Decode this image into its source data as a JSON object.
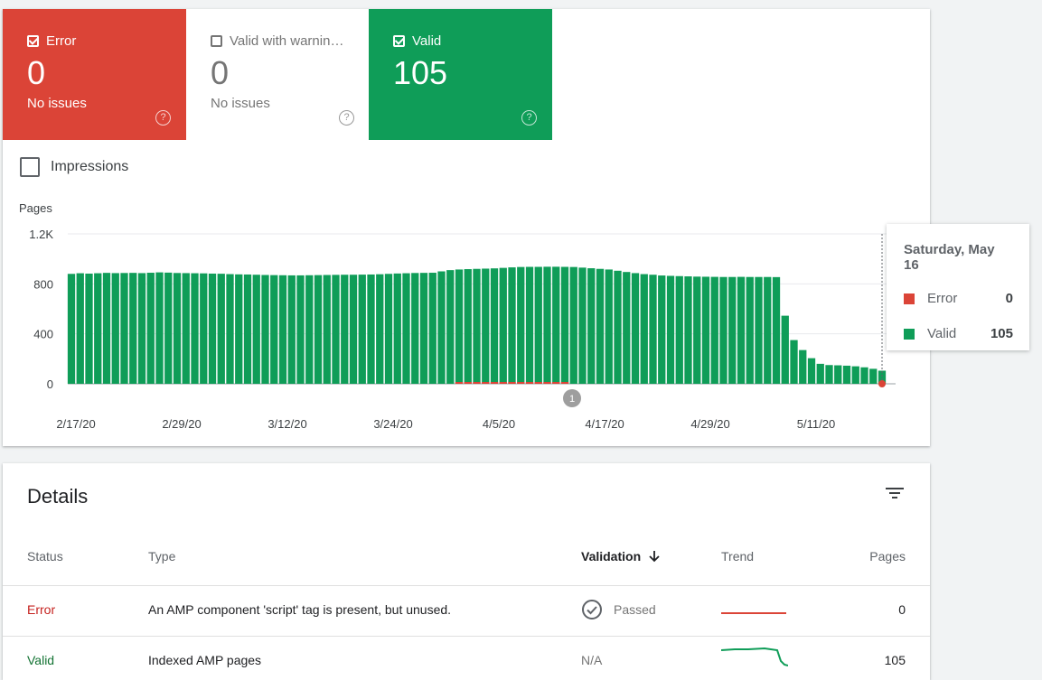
{
  "tiles": {
    "error": {
      "label": "Error",
      "count": "0",
      "sub": "No issues",
      "checked": true
    },
    "warning": {
      "label": "Valid with warnin…",
      "count": "0",
      "sub": "No issues",
      "checked": false
    },
    "valid": {
      "label": "Valid",
      "count": "105",
      "checked": true
    }
  },
  "impressions_label": "Impressions",
  "colors": {
    "error": "#db4437",
    "warning_bg": "#ffffff",
    "valid": "#0f9d58"
  },
  "chart_data": {
    "type": "bar",
    "ylabel": "Pages",
    "ylim": [
      0,
      1200
    ],
    "yticks": [
      "0",
      "400",
      "800",
      "1.2K"
    ],
    "ytick_values": [
      0,
      400,
      800,
      1200
    ],
    "xtick_labels": [
      "2/17/20",
      "2/29/20",
      "3/12/20",
      "3/24/20",
      "4/5/20",
      "4/17/20",
      "4/29/20",
      "5/11/20"
    ],
    "first_date": "2020-02-17",
    "last_date": "2020-05-16",
    "annotation": "1",
    "grid": true,
    "series": [
      {
        "name": "Valid",
        "color": "#0f9d58",
        "values": [
          880,
          885,
          882,
          885,
          888,
          886,
          887,
          888,
          886,
          889,
          892,
          890,
          887,
          886,
          885,
          884,
          882,
          881,
          878,
          876,
          875,
          873,
          871,
          870,
          869,
          868,
          868,
          869,
          870,
          871,
          872,
          873,
          873,
          874,
          875,
          877,
          880,
          883,
          885,
          887,
          888,
          889,
          900,
          910,
          915,
          918,
          920,
          922,
          924,
          928,
          932,
          935,
          936,
          936,
          937,
          937,
          936,
          935,
          930,
          925,
          920,
          915,
          905,
          895,
          886,
          878,
          873,
          867,
          864,
          862,
          860,
          858,
          857,
          856,
          855,
          855,
          856,
          855,
          855,
          855,
          854,
          545,
          350,
          270,
          205,
          160,
          150,
          148,
          145,
          140,
          132,
          120,
          105
        ]
      },
      {
        "name": "Error",
        "color": "#db4437",
        "values": [
          0,
          0,
          0,
          0,
          0,
          0,
          0,
          0,
          0,
          0,
          0,
          0,
          0,
          0,
          0,
          0,
          0,
          0,
          0,
          0,
          0,
          0,
          0,
          0,
          0,
          0,
          0,
          0,
          0,
          0,
          0,
          0,
          0,
          0,
          0,
          0,
          0,
          0,
          0,
          0,
          0,
          0,
          0,
          0,
          10,
          10,
          15,
          15,
          15,
          10,
          10,
          15,
          15,
          10,
          10,
          10,
          10,
          0,
          0,
          0,
          0,
          0,
          0,
          0,
          0,
          0,
          0,
          0,
          0,
          0,
          0,
          0,
          0,
          0,
          0,
          0,
          0,
          0,
          0,
          0,
          0,
          0,
          0,
          0,
          0,
          0,
          0,
          0,
          0,
          0,
          0,
          0,
          0
        ]
      }
    ]
  },
  "tooltip": {
    "date": "Saturday, May 16",
    "error_label": "Error",
    "error_value": "0",
    "valid_label": "Valid",
    "valid_value": "105"
  },
  "details": {
    "title": "Details",
    "headers": {
      "status": "Status",
      "type": "Type",
      "validation": "Validation",
      "trend": "Trend",
      "pages": "Pages"
    },
    "rows": [
      {
        "status": "Error",
        "type": "An AMP component 'script' tag is present, but unused.",
        "validation": "Passed",
        "pages": "0"
      },
      {
        "status": "Valid",
        "type": "Indexed AMP pages",
        "validation": "N/A",
        "pages": "105"
      }
    ]
  }
}
